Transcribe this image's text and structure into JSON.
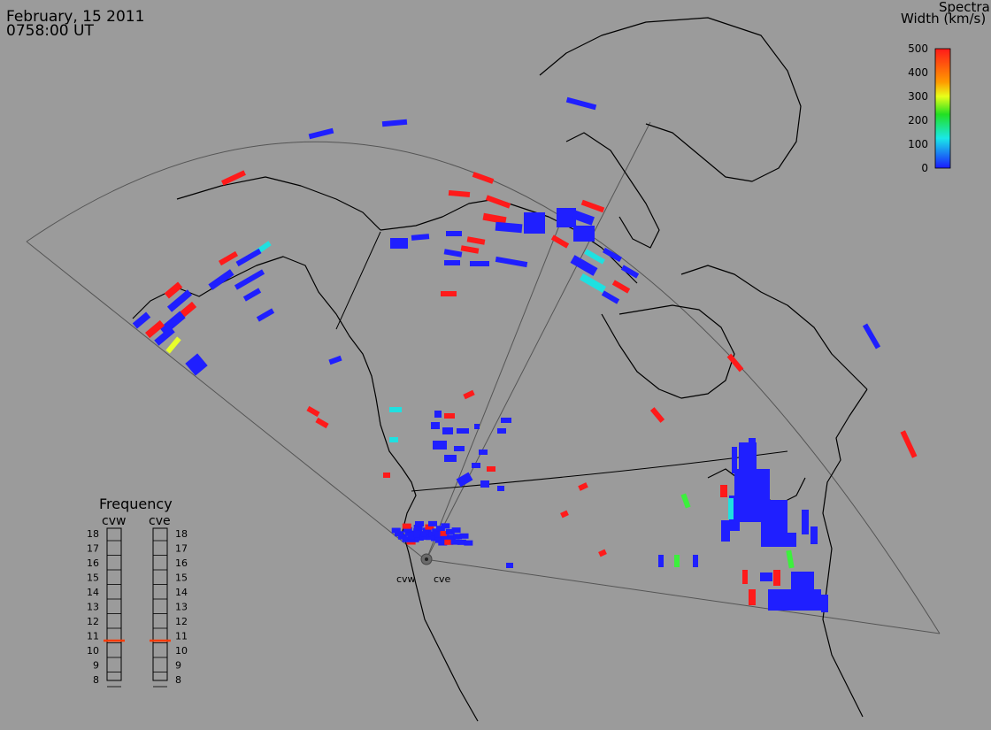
{
  "header": {
    "date": "February, 15 2011",
    "time": "0758:00 UT"
  },
  "colorbar": {
    "title_line1": "Spectral",
    "title_line2": "Width (km/s)",
    "ticks": [
      "500",
      "400",
      "300",
      "200",
      "100",
      "0"
    ]
  },
  "frequency": {
    "title": "Frequency",
    "radars": [
      {
        "code": "cvw",
        "selected": "11"
      },
      {
        "code": "cve",
        "selected": "11"
      }
    ],
    "scale": [
      "18",
      "17",
      "16",
      "15",
      "14",
      "13",
      "12",
      "11",
      "10",
      "9",
      "8"
    ]
  },
  "site_labels": [
    "cvw",
    "cve"
  ],
  "colors": {
    "background": "#9b9b9b",
    "coast": "#000000",
    "fov": "#555555",
    "low": "#1f1fff",
    "cyan": "#1fe0e0",
    "green": "#3cf03c",
    "yellow": "#e8ff2a",
    "red": "#ff1a1a"
  }
}
